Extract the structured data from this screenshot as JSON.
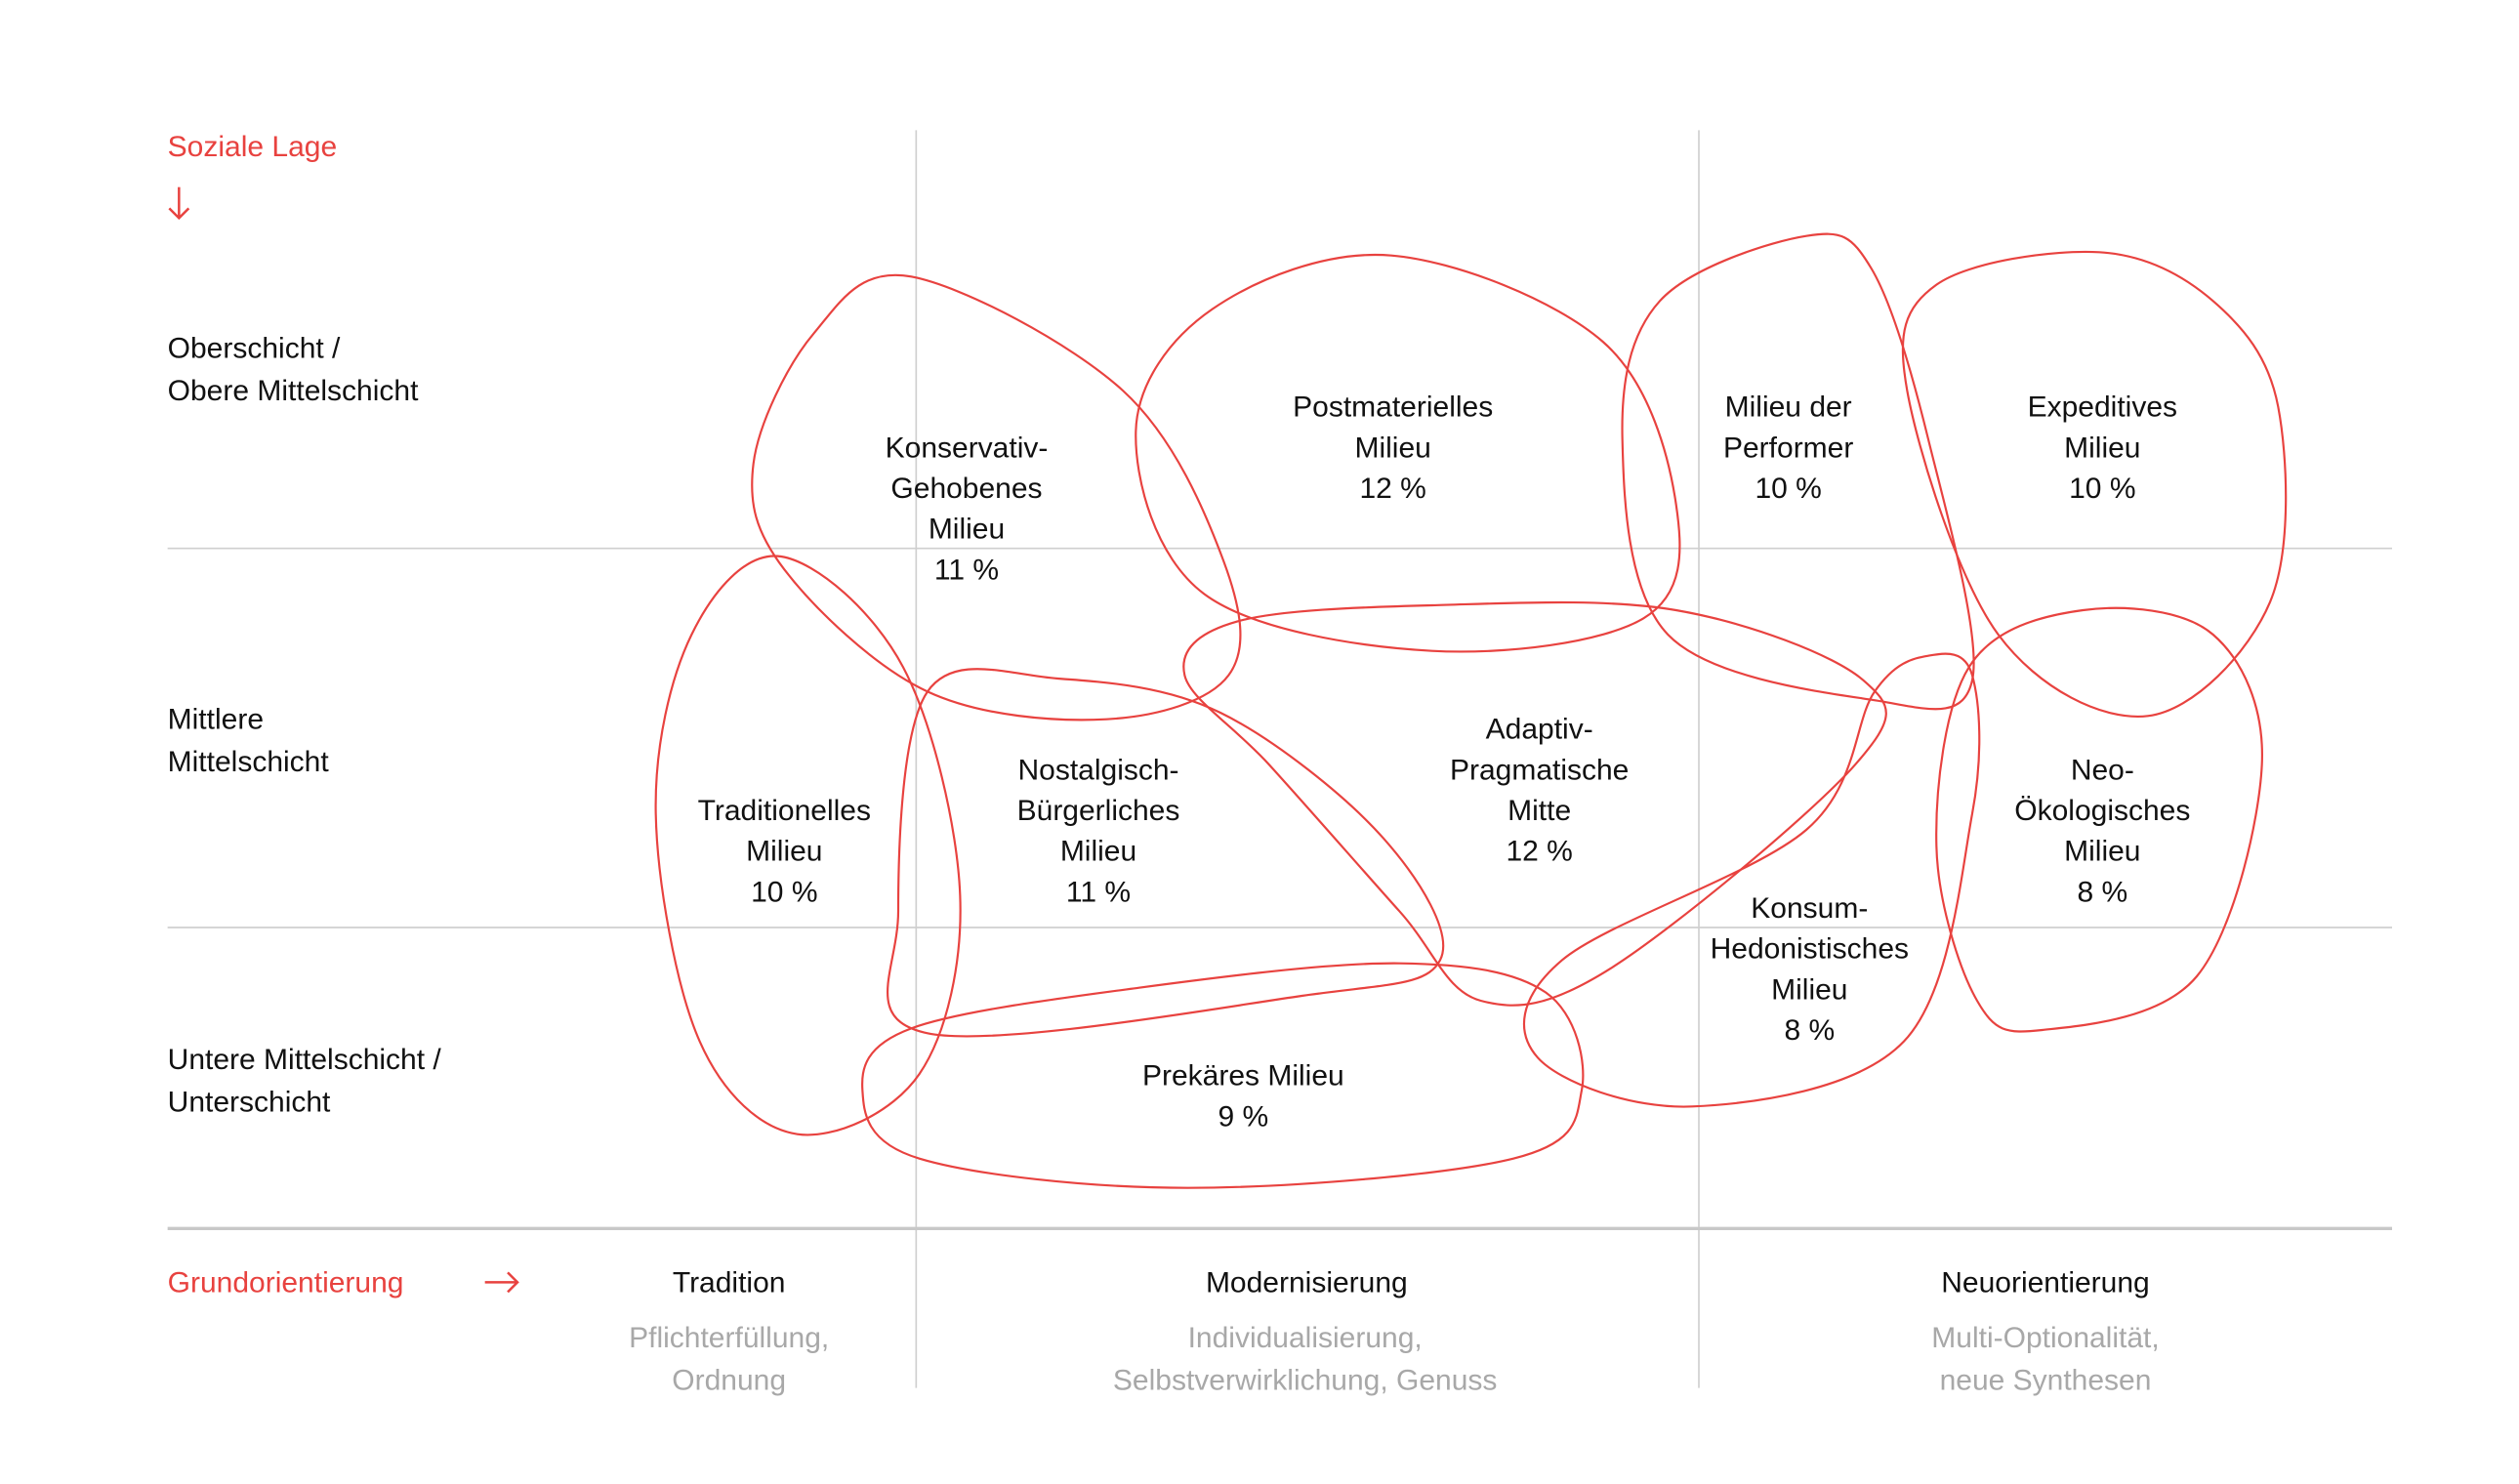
{
  "y_axis": {
    "title": "Soziale Lage",
    "levels": [
      [
        "Oberschicht /",
        "Obere Mittelschicht"
      ],
      [
        "Mittlere",
        "Mittelschicht"
      ],
      [
        "Untere Mittelschicht /",
        "Unterschicht"
      ]
    ]
  },
  "x_axis": {
    "title": "Grundorientierung",
    "columns": [
      {
        "label": "Tradition",
        "sub": [
          "Pflichterfüllung,",
          "Ordnung"
        ]
      },
      {
        "label": "Modernisierung",
        "sub": [
          "Individualisierung,",
          "Selbstverwirklichung, Genuss"
        ]
      },
      {
        "label": "Neuorientierung",
        "sub": [
          "Multi-Optionalität,",
          "neue Synthesen"
        ]
      }
    ]
  },
  "milieus": [
    {
      "lines": [
        "Konservativ-",
        "Gehobenes",
        "Milieu"
      ],
      "share": "11 %"
    },
    {
      "lines": [
        "Postmaterielles",
        "Milieu"
      ],
      "share": "12 %"
    },
    {
      "lines": [
        "Milieu der",
        "Performer"
      ],
      "share": "10 %"
    },
    {
      "lines": [
        "Expeditives",
        "Milieu"
      ],
      "share": "10 %"
    },
    {
      "lines": [
        "Traditionelles",
        "Milieu"
      ],
      "share": "10 %"
    },
    {
      "lines": [
        "Nostalgisch-",
        "Bürgerliches",
        "Milieu"
      ],
      "share": "11 %"
    },
    {
      "lines": [
        "Adaptiv-",
        "Pragmatische",
        "Mitte"
      ],
      "share": "12 %"
    },
    {
      "lines": [
        "Konsum-",
        "Hedonistisches",
        "Milieu"
      ],
      "share": "8 %"
    },
    {
      "lines": [
        "Neo-",
        "Ökologisches",
        "Milieu"
      ],
      "share": "8 %"
    },
    {
      "lines": [
        "Prekäres Milieu"
      ],
      "share": "9 %"
    }
  ],
  "colors": {
    "accent": "#e8423f",
    "grid": "#cfcfcf",
    "subtext": "#a8a8a8"
  }
}
